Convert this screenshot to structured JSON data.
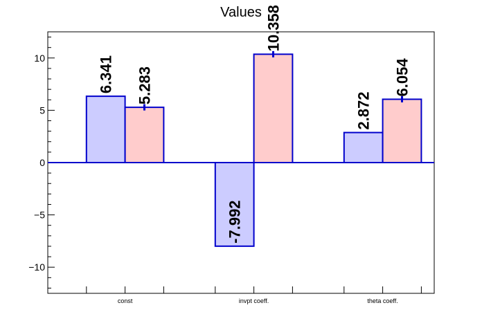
{
  "chart_data": {
    "type": "bar",
    "title": "Values",
    "categories": [
      "const",
      "invpt coeff.",
      "theta coeff."
    ],
    "series": [
      {
        "values": [
          6.341,
          -7.992,
          2.872
        ],
        "labels": [
          "6.341",
          "-7.992",
          "2.872"
        ],
        "errors": [
          0,
          0,
          0
        ]
      },
      {
        "values": [
          5.283,
          10.358,
          6.054
        ],
        "labels": [
          "5.283",
          "10.358",
          "6.054"
        ],
        "errors": [
          0.3,
          0.3,
          0.3
        ]
      }
    ],
    "colors": {
      "series_fills": [
        "#ccccff",
        "#ffcccc"
      ],
      "bar_outline": "#0000cc",
      "zero_line": "#0000cc",
      "axis": "#000000"
    },
    "ylim": [
      -12.5,
      12.5
    ],
    "y_ticks": [
      -10,
      -5,
      0,
      5,
      10
    ],
    "y_tick_labels": [
      "−10",
      "−5",
      "0",
      "5",
      "10"
    ],
    "grid": false,
    "xlabel": "",
    "ylabel": ""
  }
}
